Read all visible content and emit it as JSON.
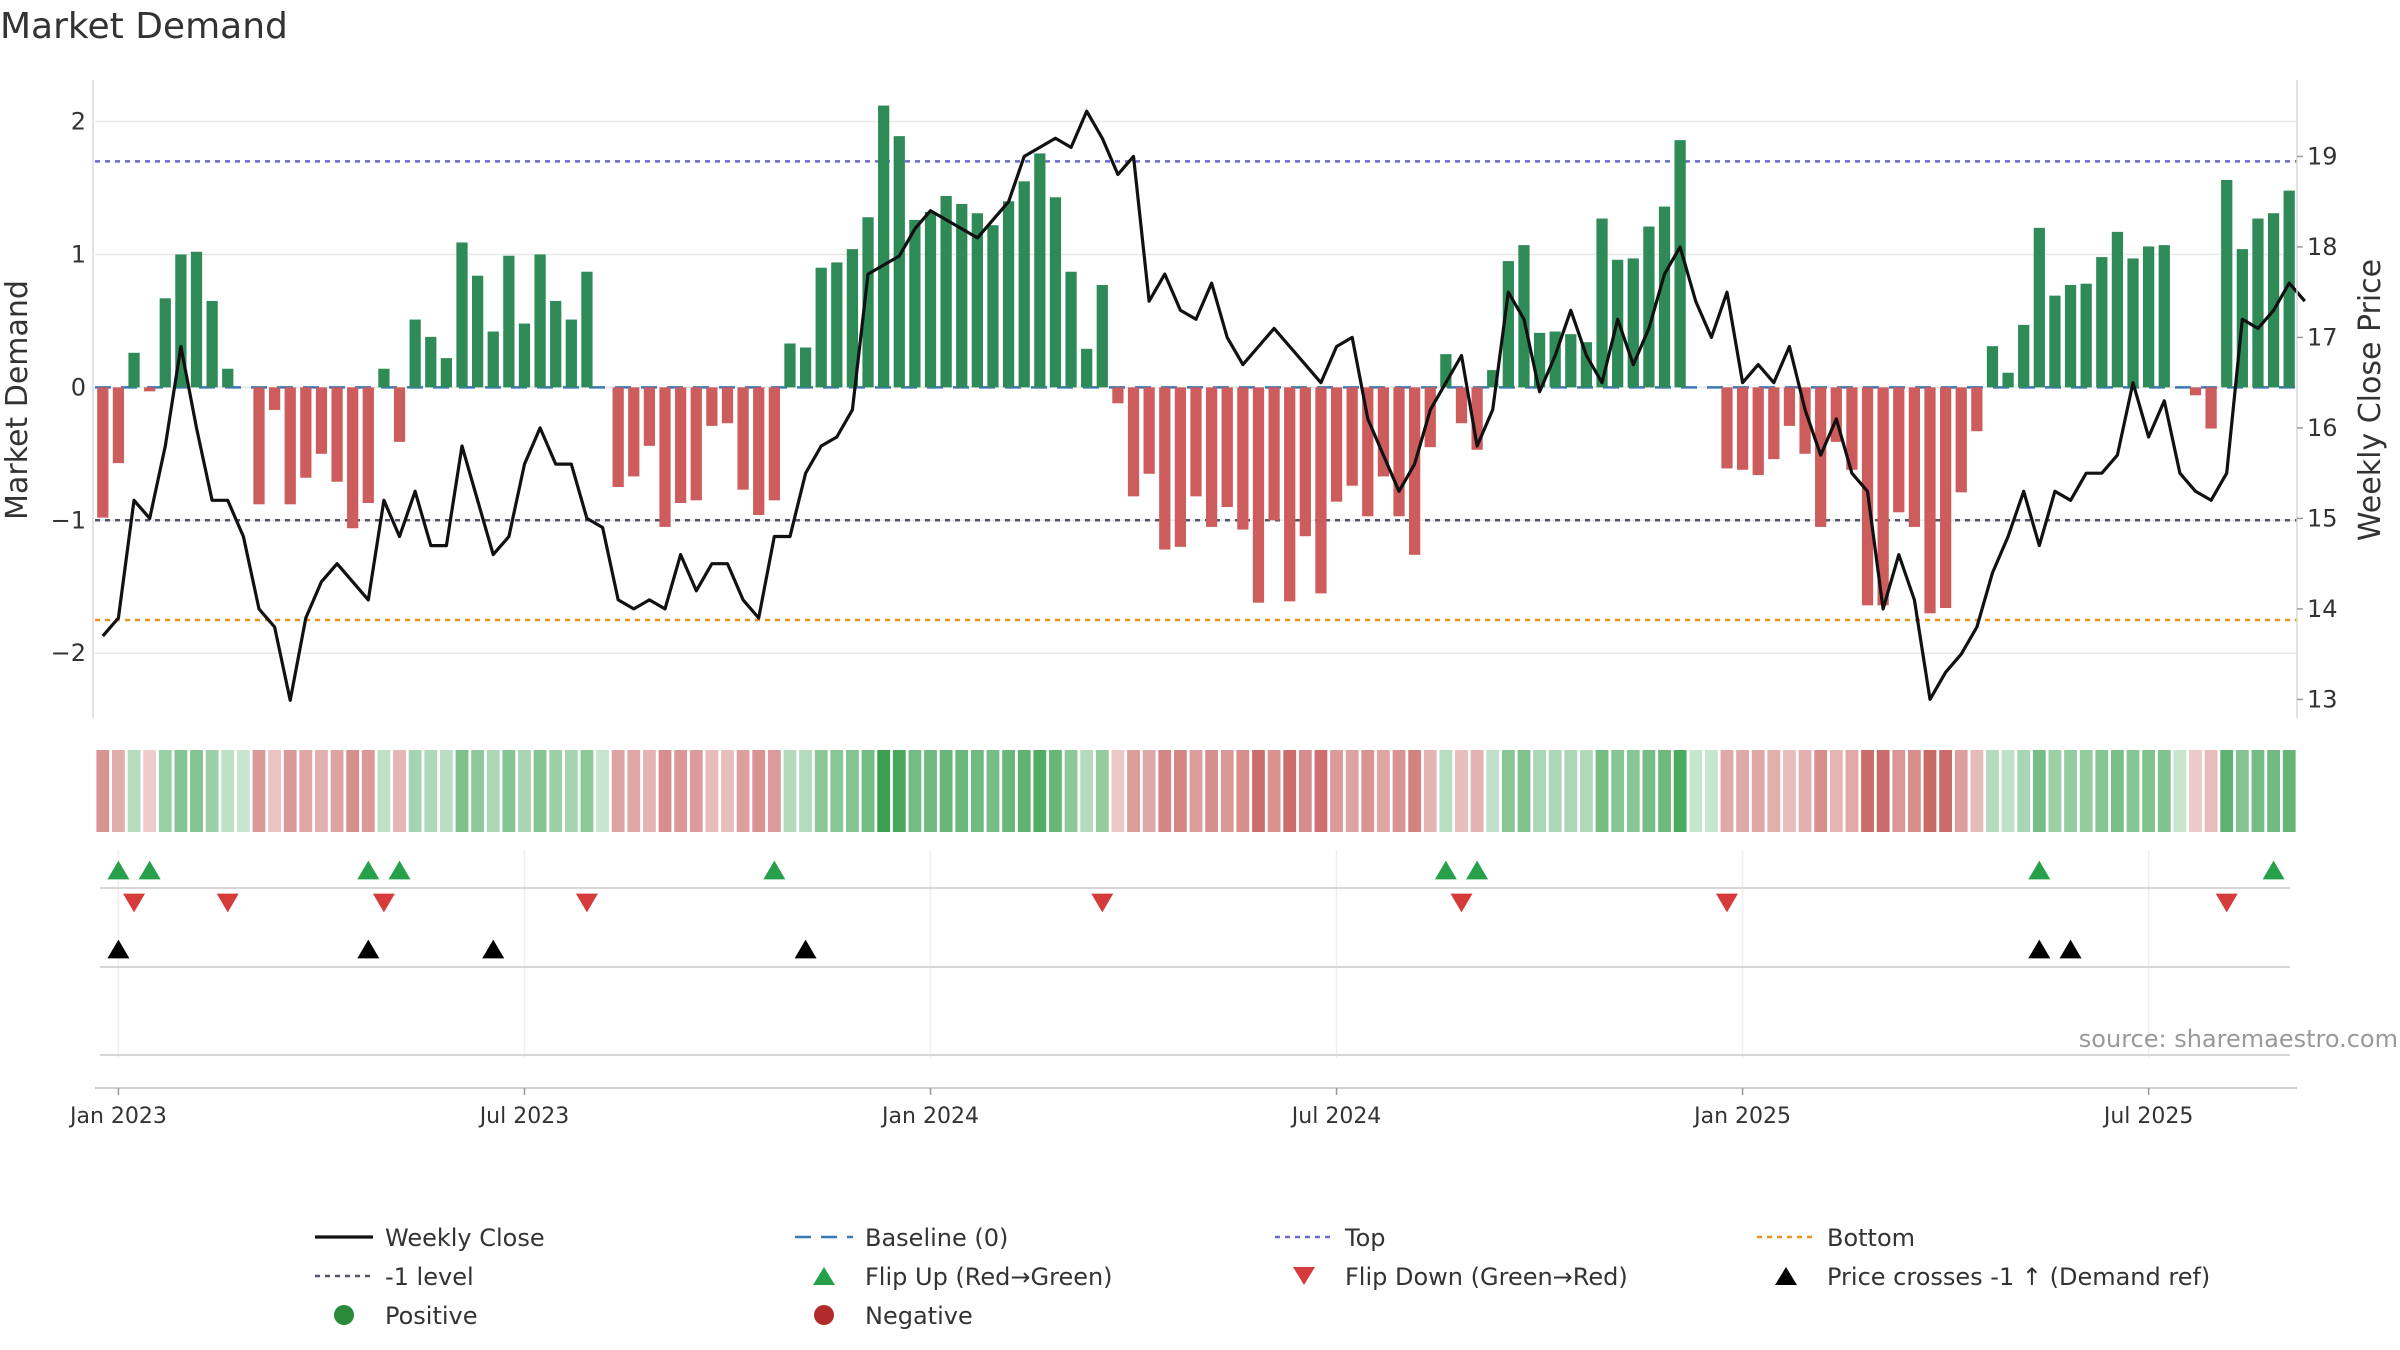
{
  "chart_data": {
    "type": "bar",
    "title": "Market Demand",
    "ylabel": "Market Demand",
    "y2label": "Weekly Close Price",
    "ylim": [
      -2.45,
      2.35
    ],
    "y2lim": [
      12.85,
      19.9
    ],
    "yticks": [
      2,
      1,
      0,
      -1,
      -2
    ],
    "ytick_labels": [
      "2",
      "1",
      "0",
      "−1",
      "−2"
    ],
    "y2ticks": [
      19,
      18,
      17,
      16,
      15,
      14,
      13
    ],
    "y2tick_labels": [
      "19",
      "18",
      "17",
      "16",
      "15",
      "14",
      "13"
    ],
    "x_date_ticks": [
      {
        "label": "Jan 2023",
        "week": 1
      },
      {
        "label": "Jul 2023",
        "week": 27
      },
      {
        "label": "Jan 2024",
        "week": 53
      },
      {
        "label": "Jul 2024",
        "week": 79
      },
      {
        "label": "Jan 2025",
        "week": 105
      },
      {
        "label": "Jul 2025",
        "week": 131
      }
    ],
    "reference_lines": {
      "top": 1.7,
      "minus_one": -1.0,
      "bottom": -1.75,
      "baseline": 0
    },
    "demand": [
      -0.98,
      -0.57,
      0.26,
      -0.03,
      0.67,
      1.0,
      1.02,
      0.65,
      0.14,
      0.0,
      -0.88,
      -0.17,
      -0.88,
      -0.68,
      -0.5,
      -0.71,
      -1.06,
      -0.87,
      0.14,
      -0.41,
      0.51,
      0.38,
      0.22,
      1.09,
      0.84,
      0.42,
      0.99,
      0.48,
      1.0,
      0.65,
      0.51,
      0.87,
      0.0,
      -0.75,
      -0.67,
      -0.44,
      -1.05,
      -0.87,
      -0.85,
      -0.29,
      -0.27,
      -0.77,
      -0.96,
      -0.85,
      0.33,
      0.3,
      0.9,
      0.94,
      1.04,
      1.28,
      2.12,
      1.89,
      1.26,
      1.32,
      1.44,
      1.38,
      1.31,
      1.22,
      1.4,
      1.55,
      1.76,
      1.43,
      0.87,
      0.29,
      0.77,
      -0.12,
      -0.82,
      -0.65,
      -1.22,
      -1.2,
      -0.82,
      -1.05,
      -0.9,
      -1.07,
      -1.62,
      -1.0,
      -1.61,
      -1.12,
      -1.55,
      -0.86,
      -0.74,
      -0.97,
      -0.67,
      -0.97,
      -1.26,
      -0.45,
      0.25,
      -0.27,
      -0.47,
      0.13,
      0.95,
      1.07,
      0.41,
      0.42,
      0.4,
      0.34,
      1.27,
      0.96,
      0.97,
      1.21,
      1.36,
      1.86,
      0.0,
      0.0,
      -0.61,
      -0.62,
      -0.66,
      -0.54,
      -0.29,
      -0.5,
      -1.05,
      -0.41,
      -0.62,
      -1.64,
      -1.64,
      -0.94,
      -1.05,
      -1.7,
      -1.66,
      -0.79,
      -0.33,
      0.31,
      0.11,
      0.47,
      1.2,
      0.69,
      0.77,
      0.78,
      0.98,
      1.17,
      0.97,
      1.06,
      1.07,
      0.0,
      -0.06,
      -0.31,
      1.56,
      1.04,
      1.27,
      1.31,
      1.48
    ],
    "weekly_close": [
      13.7,
      13.9,
      15.2,
      15.0,
      15.8,
      16.9,
      16.0,
      15.2,
      15.2,
      14.8,
      14.0,
      13.8,
      12.99,
      13.9,
      14.3,
      14.5,
      14.3,
      14.1,
      15.2,
      14.8,
      15.3,
      14.7,
      14.7,
      15.8,
      15.2,
      14.6,
      14.8,
      15.6,
      16.0,
      15.6,
      15.6,
      15.0,
      14.9,
      14.1,
      14.0,
      14.1,
      14.0,
      14.6,
      14.2,
      14.5,
      14.5,
      14.1,
      13.9,
      14.8,
      14.8,
      15.5,
      15.8,
      15.9,
      16.2,
      17.7,
      17.8,
      17.9,
      18.2,
      18.4,
      18.3,
      18.2,
      18.1,
      18.3,
      18.5,
      19.0,
      19.1,
      19.2,
      19.1,
      19.5,
      19.2,
      18.8,
      19.0,
      17.4,
      17.7,
      17.3,
      17.2,
      17.6,
      17.0,
      16.7,
      16.9,
      17.1,
      16.9,
      16.7,
      16.5,
      16.9,
      17.0,
      16.1,
      15.7,
      15.3,
      15.6,
      16.2,
      16.5,
      16.8,
      15.8,
      16.2,
      17.5,
      17.2,
      16.4,
      16.8,
      17.3,
      16.8,
      16.5,
      17.2,
      16.7,
      17.1,
      17.7,
      18.0,
      17.4,
      17.0,
      17.5,
      16.5,
      16.7,
      16.5,
      16.9,
      16.2,
      15.7,
      16.1,
      15.5,
      15.3,
      14.0,
      14.6,
      14.1,
      13.0,
      13.3,
      13.5,
      13.8,
      14.4,
      14.8,
      15.3,
      14.7,
      15.3,
      15.2,
      15.5,
      15.5,
      15.7,
      16.5,
      15.9,
      16.3,
      15.5,
      15.3,
      15.2,
      15.5,
      17.2,
      17.1,
      17.3,
      17.6,
      17.4
    ],
    "flip_up_weeks": [
      1,
      3,
      17,
      19,
      43,
      86,
      88,
      124,
      139
    ],
    "flip_down_weeks": [
      2,
      8,
      18,
      31,
      64,
      87,
      104,
      136
    ],
    "price_cross_weeks": [
      1,
      17,
      25,
      45,
      124,
      126
    ],
    "legend": [
      {
        "key": "weekly_close",
        "label": "Weekly Close",
        "symbol": "line",
        "color": "#111111"
      },
      {
        "key": "baseline",
        "label": "Baseline (0)",
        "symbol": "dash",
        "color": "#3a78b5"
      },
      {
        "key": "top",
        "label": "Top",
        "symbol": "dot",
        "color": "#6b6bc9"
      },
      {
        "key": "bottom",
        "label": "Bottom",
        "symbol": "dot",
        "color": "#e59421"
      },
      {
        "key": "minus_one",
        "label": "-1 level",
        "symbol": "dot",
        "color": "#555566"
      },
      {
        "key": "flip_up",
        "label": "Flip Up (Red→Green)",
        "symbol": "triangle-up",
        "color": "#26a04a"
      },
      {
        "key": "flip_down",
        "label": "Flip Down (Green→Red)",
        "symbol": "triangle-down",
        "color": "#d63b3b"
      },
      {
        "key": "price_cross",
        "label": "Price crosses -1 ↑ (Demand ref)",
        "symbol": "triangle-up",
        "color": "#000000"
      },
      {
        "key": "positive",
        "label": "Positive",
        "symbol": "circle",
        "color": "#2a8a3a"
      },
      {
        "key": "negative",
        "label": "Negative",
        "symbol": "circle",
        "color": "#b22a2a"
      }
    ],
    "colors": {
      "positive_bar": "#2e8b57",
      "negative_bar": "#cd5c5c",
      "heat_positive": "#3aa050",
      "heat_negative": "#c0504d",
      "grid": "#e8e8e8"
    }
  },
  "source": "source: sharemaestro.com"
}
